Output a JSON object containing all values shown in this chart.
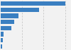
{
  "values": [
    3450,
    2050,
    950,
    730,
    580,
    160,
    115,
    75
  ],
  "bar_color": "#3a7fc1",
  "background_color": "#f2f2f2",
  "grid_color": "#c8c8c8",
  "figsize": [
    1.0,
    0.71
  ],
  "dpi": 100
}
